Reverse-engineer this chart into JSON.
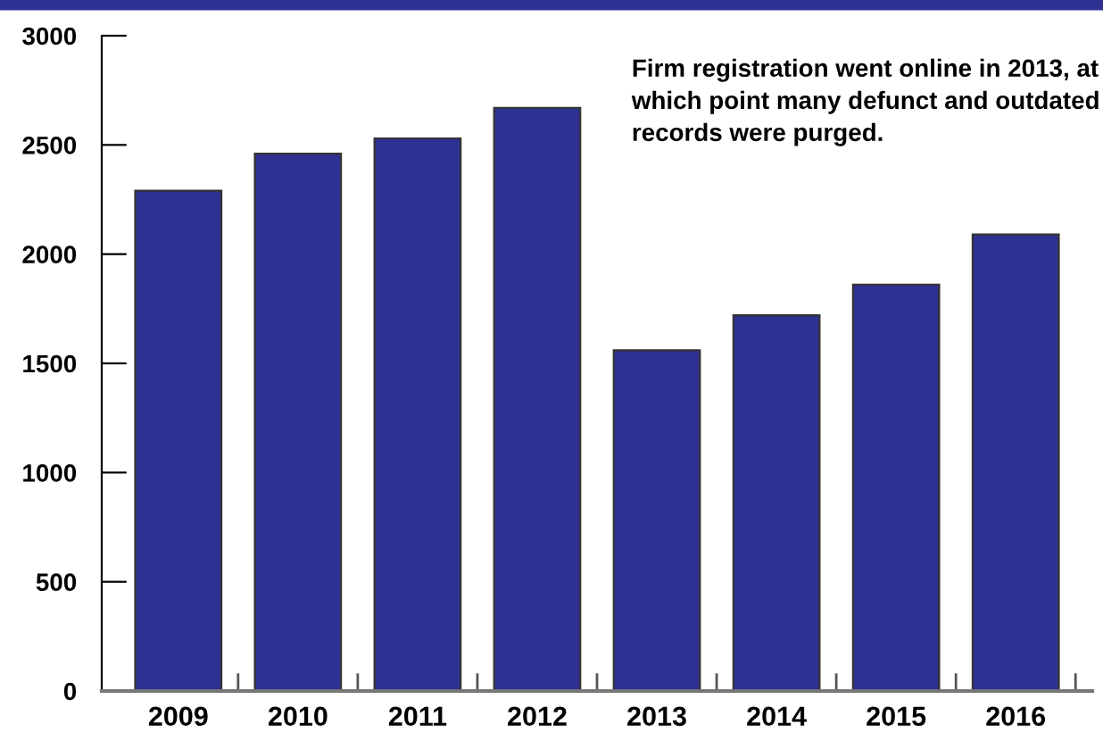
{
  "chart_data": {
    "type": "bar",
    "categories": [
      "2009",
      "2010",
      "2011",
      "2012",
      "2013",
      "2014",
      "2015",
      "2016"
    ],
    "values": [
      2290,
      2460,
      2530,
      2670,
      1560,
      1720,
      1860,
      2090
    ],
    "color": "#2e3191",
    "ylim": [
      0,
      3000
    ],
    "yticks": [
      0,
      500,
      1000,
      1500,
      2000,
      2500,
      3000
    ],
    "grid": false,
    "legend": false,
    "annotations": [
      "Firm registration went online in 2013, at which point many defunct and outdated records were purged."
    ]
  }
}
